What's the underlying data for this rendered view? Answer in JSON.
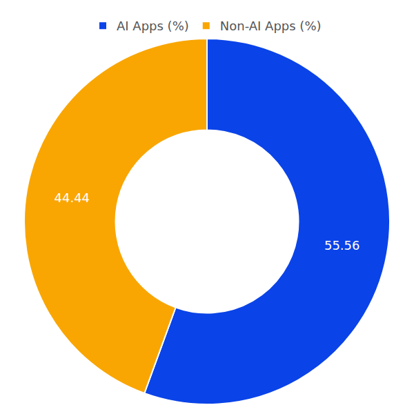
{
  "chart_data": {
    "type": "pie",
    "categories": [
      "AI Apps (%)",
      "Non-AI Apps (%)"
    ],
    "values": [
      55.56,
      44.44
    ],
    "colors": [
      "#0a43e8",
      "#f9a602"
    ],
    "data_labels": true,
    "legend": "top"
  }
}
